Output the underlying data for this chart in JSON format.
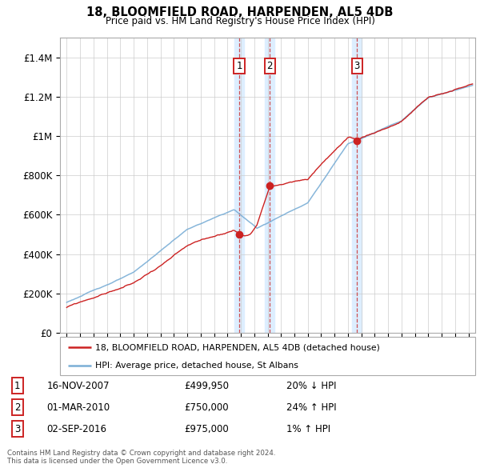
{
  "title": "18, BLOOMFIELD ROAD, HARPENDEN, AL5 4DB",
  "subtitle": "Price paid vs. HM Land Registry's House Price Index (HPI)",
  "hpi_label": "HPI: Average price, detached house, St Albans",
  "property_label": "18, BLOOMFIELD ROAD, HARPENDEN, AL5 4DB (detached house)",
  "transactions": [
    {
      "num": 1,
      "date": "16-NOV-2007",
      "year": 2007.88,
      "price": 499950,
      "hpi_pct": 0.8
    },
    {
      "num": 2,
      "date": "01-MAR-2010",
      "year": 2010.17,
      "price": 750000,
      "hpi_pct": 1.24
    },
    {
      "num": 3,
      "date": "02-SEP-2016",
      "year": 2016.67,
      "price": 975000,
      "hpi_pct": 1.01
    }
  ],
  "transaction_labels": [
    {
      "num": 1,
      "date": "16-NOV-2007",
      "price_str": "£499,950",
      "hpi_rel": "20% ↓ HPI"
    },
    {
      "num": 2,
      "date": "01-MAR-2010",
      "price_str": "£750,000",
      "hpi_rel": "24% ↑ HPI"
    },
    {
      "num": 3,
      "date": "02-SEP-2016",
      "price_str": "£975,000",
      "hpi_rel": "1% ↑ HPI"
    }
  ],
  "footer": "Contains HM Land Registry data © Crown copyright and database right 2024.\nThis data is licensed under the Open Government Licence v3.0.",
  "ylim": [
    0,
    1500000
  ],
  "yticks": [
    0,
    200000,
    400000,
    600000,
    800000,
    1000000,
    1200000,
    1400000
  ],
  "xlim_start": 1994.5,
  "xlim_end": 2025.5,
  "hpi_color": "#7aaed6",
  "property_color": "#cc2222",
  "vline_color": "#cc3333",
  "shade_color": "#ddeeff",
  "plot_bg": "#ffffff",
  "grid_color": "#cccccc",
  "legend_border": "#aaaaaa"
}
